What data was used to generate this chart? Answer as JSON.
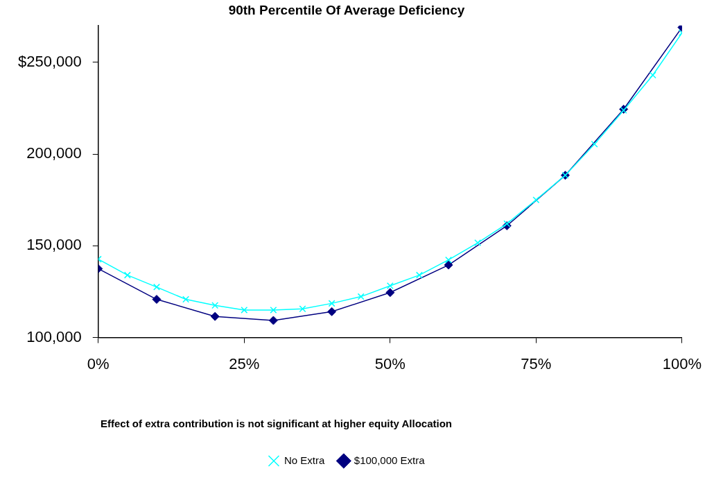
{
  "chart_data": {
    "type": "line",
    "title": "90th Percentile Of Average Deficiency",
    "annotations": [
      "Effect of extra contribution is not significant at higher equity Allocation"
    ],
    "xlim": [
      0,
      100
    ],
    "xticks": [
      {
        "value": 0,
        "label": "0%"
      },
      {
        "value": 25,
        "label": "25%"
      },
      {
        "value": 50,
        "label": "50%"
      },
      {
        "value": 75,
        "label": "75%"
      },
      {
        "value": 100,
        "label": "100%"
      }
    ],
    "ylim": [
      100000,
      270000
    ],
    "yticks": [
      {
        "value": 100000,
        "label": "100,000"
      },
      {
        "value": 150000,
        "label": "150,000"
      },
      {
        "value": 200000,
        "label": "200,000"
      },
      {
        "value": 250000,
        "label": "$250,000"
      }
    ],
    "grid": false,
    "legend": "bottom",
    "series": [
      {
        "name": "No Extra",
        "color": "#00ffff",
        "marker": "cross",
        "x": [
          0,
          5,
          10,
          15,
          20,
          25,
          30,
          35,
          40,
          45,
          50,
          55,
          60,
          65,
          70,
          75,
          80,
          85,
          90,
          95,
          100
        ],
        "values": [
          142700,
          134000,
          127500,
          120800,
          117500,
          115000,
          115000,
          115600,
          118600,
          122300,
          128200,
          134000,
          142300,
          151600,
          162000,
          175000,
          188400,
          205400,
          223800,
          243000,
          266000
        ]
      },
      {
        "name": "$100,000 Extra",
        "color": "#000080",
        "marker": "diamond",
        "x": [
          0,
          10,
          20,
          30,
          40,
          50,
          60,
          70,
          80,
          90,
          100
        ],
        "values": [
          137500,
          120800,
          111500,
          109300,
          114100,
          124500,
          139500,
          160900,
          188400,
          224400,
          269000
        ]
      }
    ]
  }
}
